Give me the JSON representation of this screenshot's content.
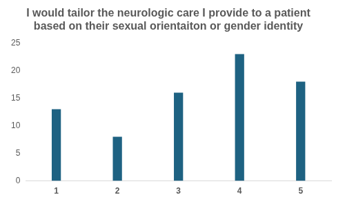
{
  "chart_data": {
    "type": "bar",
    "title": "I would tailor the neurologic care I provide to a patient based on their sexual orientaiton or gender identity",
    "categories": [
      "1",
      "2",
      "3",
      "4",
      "5"
    ],
    "values": [
      13,
      8,
      16,
      23,
      18
    ],
    "color": "#1e6282",
    "ylim": [
      0,
      25
    ],
    "yticks": [
      0,
      5,
      10,
      15,
      20,
      25
    ],
    "grid": false
  }
}
